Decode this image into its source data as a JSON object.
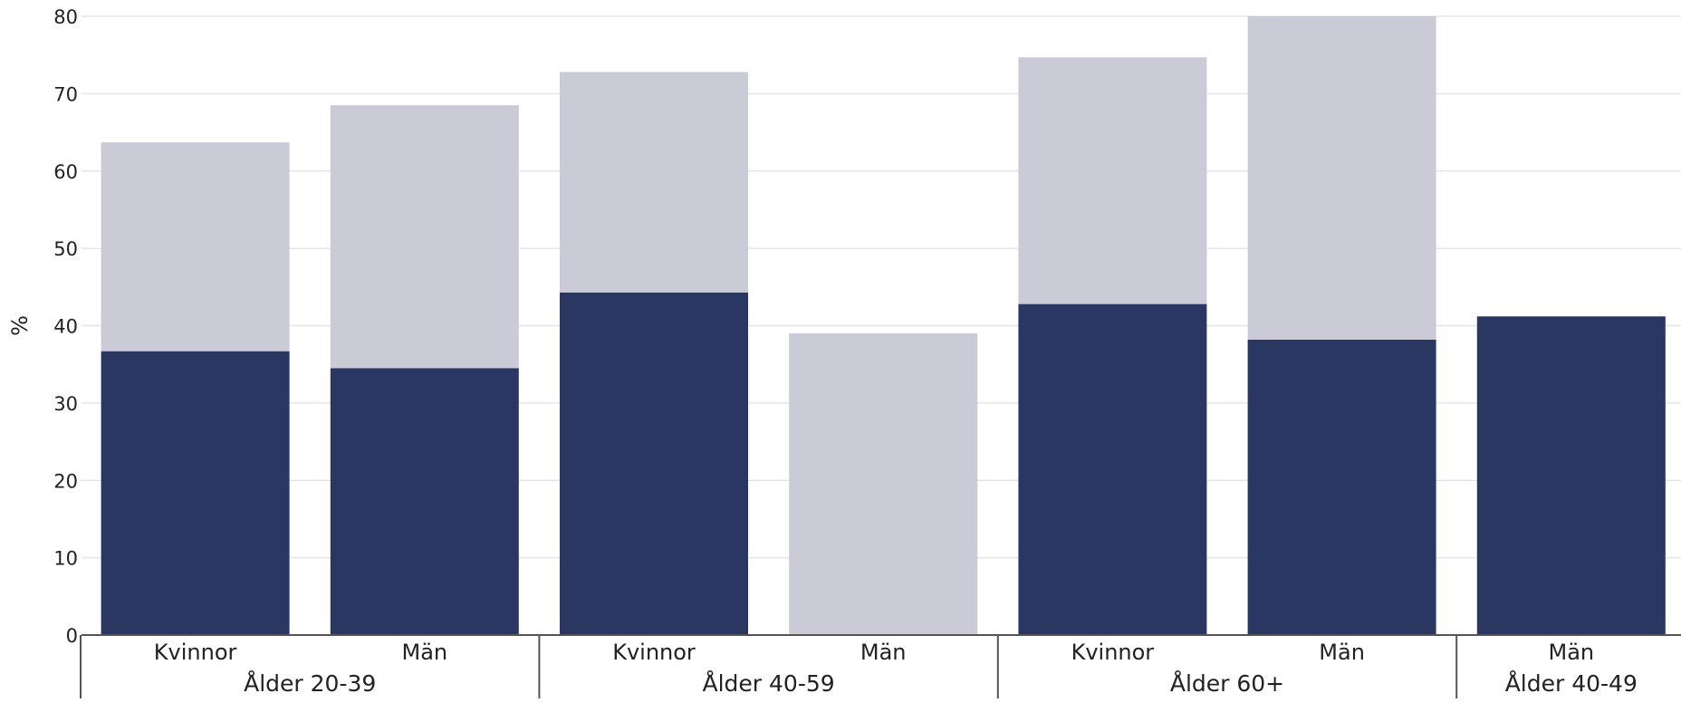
{
  "chart_data": {
    "type": "bar",
    "stacked": true,
    "ylabel": "%",
    "ylim": [
      0,
      80
    ],
    "yticks": [
      "0",
      "10",
      "20",
      "30",
      "40",
      "50",
      "60",
      "70",
      "80"
    ],
    "grid": true,
    "colors": {
      "dark": "#2b3763",
      "light": "#cacbd7",
      "axis": "#555555",
      "grid": "#e6e6e6"
    },
    "groups": [
      {
        "label": "Ålder 20-39",
        "categories": [
          "Kvinnor",
          "Män"
        ]
      },
      {
        "label": "Ålder 40-59",
        "categories": [
          "Kvinnor",
          "Män"
        ]
      },
      {
        "label": "Ålder 60+",
        "categories": [
          "Kvinnor",
          "Män"
        ]
      },
      {
        "label": "Ålder 40-49",
        "categories": [
          "Män"
        ]
      }
    ],
    "series": [
      {
        "color": "dark",
        "values": [
          36.7,
          34.5,
          44.3,
          0,
          42.8,
          38.2,
          41.2
        ]
      },
      {
        "color": "light",
        "values": [
          27.0,
          34.0,
          28.5,
          39.0,
          31.9,
          41.8,
          0
        ]
      }
    ]
  }
}
